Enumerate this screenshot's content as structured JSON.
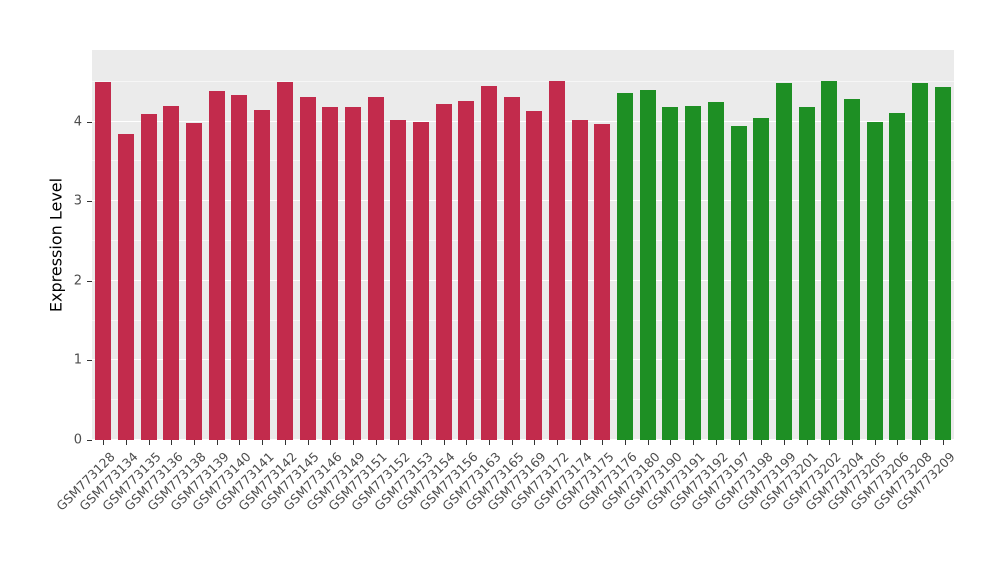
{
  "chart_data": {
    "type": "bar",
    "title": "",
    "xlabel": "",
    "ylabel": "Expression Level",
    "ylim": [
      0,
      4.9
    ],
    "yticks": [
      0,
      1,
      2,
      3,
      4
    ],
    "minor_ticks": [
      0.5,
      1.5,
      2.5,
      3.5,
      4.5
    ],
    "grid": "on",
    "legend": "none",
    "panel_background": "#EBEBEB",
    "colors": {
      "groupA": "#C22B4C",
      "groupB": "#1E8F24"
    },
    "categories": [
      "GSM773128",
      "GSM773134",
      "GSM773135",
      "GSM773136",
      "GSM773138",
      "GSM773139",
      "GSM773140",
      "GSM773141",
      "GSM773142",
      "GSM773145",
      "GSM773146",
      "GSM773149",
      "GSM773151",
      "GSM773152",
      "GSM773153",
      "GSM773154",
      "GSM773156",
      "GSM773163",
      "GSM773165",
      "GSM773169",
      "GSM773172",
      "GSM773174",
      "GSM773175",
      "GSM773176",
      "GSM773180",
      "GSM773190",
      "GSM773191",
      "GSM773192",
      "GSM773197",
      "GSM773198",
      "GSM773199",
      "GSM773201",
      "GSM773202",
      "GSM773204",
      "GSM773205",
      "GSM773206",
      "GSM773208",
      "GSM773209"
    ],
    "values": [
      4.5,
      3.85,
      4.1,
      4.2,
      3.98,
      4.38,
      4.33,
      4.15,
      4.5,
      4.31,
      4.19,
      4.19,
      4.31,
      4.02,
      3.99,
      4.22,
      4.26,
      4.45,
      4.31,
      4.13,
      4.51,
      4.02,
      3.97,
      4.36,
      4.4,
      4.19,
      4.2,
      4.25,
      3.94,
      4.05,
      4.48,
      4.19,
      4.51,
      4.28,
      4.0,
      4.11,
      4.48,
      4.44
    ],
    "groups": [
      "groupA",
      "groupA",
      "groupA",
      "groupA",
      "groupA",
      "groupA",
      "groupA",
      "groupA",
      "groupA",
      "groupA",
      "groupA",
      "groupA",
      "groupA",
      "groupA",
      "groupA",
      "groupA",
      "groupA",
      "groupA",
      "groupA",
      "groupA",
      "groupA",
      "groupA",
      "groupA",
      "groupB",
      "groupB",
      "groupB",
      "groupB",
      "groupB",
      "groupB",
      "groupB",
      "groupB",
      "groupB",
      "groupB",
      "groupB",
      "groupB",
      "groupB",
      "groupB",
      "groupB"
    ]
  }
}
